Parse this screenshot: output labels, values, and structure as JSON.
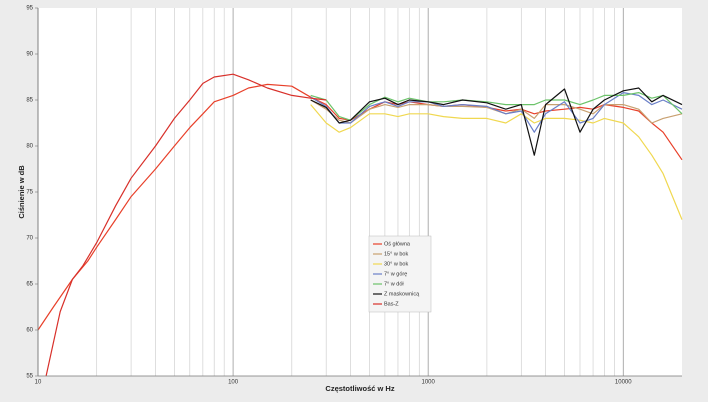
{
  "chart_data": {
    "type": "line",
    "x_label": "Częstotliwość w Hz",
    "y_label": "Ciśnienie w dB",
    "xscale": "log",
    "xlim": [
      10,
      20000
    ],
    "xticks": [
      10,
      100,
      1000,
      10000
    ],
    "x_minor_grid": [
      20,
      30,
      40,
      50,
      60,
      70,
      80,
      90,
      200,
      300,
      400,
      500,
      600,
      700,
      800,
      900,
      2000,
      3000,
      4000,
      5000,
      6000,
      7000,
      8000,
      9000
    ],
    "ylim": [
      55,
      95
    ],
    "yticks": [
      55,
      60,
      65,
      70,
      75,
      80,
      85,
      90,
      95
    ],
    "series": [
      {
        "name": "Oś główna",
        "color": "#e8402a",
        "x": [
          10,
          12,
          15,
          18,
          20,
          25,
          30,
          40,
          50,
          60,
          70,
          80,
          100,
          120,
          150,
          200,
          250,
          300,
          350,
          400,
          500,
          600,
          700,
          800,
          1000,
          1200,
          1500,
          2000,
          2500,
          3000,
          3500,
          4000,
          5000,
          6000,
          7000,
          8000,
          10000,
          12000,
          14000,
          16000,
          20000
        ],
        "values": [
          60,
          62.5,
          65.5,
          67.5,
          69,
          72,
          74.5,
          77.5,
          80,
          82,
          83.5,
          84.8,
          85.5,
          86.3,
          86.7,
          86.5,
          85.3,
          84.5,
          83,
          82.8,
          84,
          84.8,
          84.5,
          84.8,
          84.5,
          84.3,
          84.5,
          84.2,
          83.8,
          84,
          83.5,
          83.8,
          84,
          84.2,
          84,
          84.5,
          84.2,
          83.8,
          82.5,
          81.5,
          78.5
        ]
      },
      {
        "name": "15° w bok",
        "color": "#c8a070",
        "x": [
          250,
          300,
          350,
          400,
          500,
          600,
          700,
          800,
          1000,
          1200,
          1500,
          2000,
          2500,
          3000,
          3500,
          4000,
          5000,
          6000,
          7000,
          8000,
          10000,
          12000,
          14000,
          16000,
          20000
        ],
        "values": [
          85,
          84,
          82.8,
          82.5,
          84,
          84.5,
          84.2,
          84.5,
          84.5,
          84.3,
          84.3,
          84.2,
          83.5,
          84,
          83,
          84.5,
          84.5,
          84,
          83.5,
          84.5,
          84.5,
          84,
          82.5,
          83,
          83.5
        ]
      },
      {
        "name": "30° w bok",
        "color": "#f0d850",
        "x": [
          250,
          300,
          350,
          400,
          500,
          600,
          700,
          800,
          1000,
          1200,
          1500,
          2000,
          2500,
          3000,
          3500,
          4000,
          5000,
          6000,
          7000,
          8000,
          10000,
          12000,
          14000,
          16000,
          20000
        ],
        "values": [
          84.5,
          82.5,
          81.5,
          82,
          83.5,
          83.5,
          83.2,
          83.5,
          83.5,
          83.2,
          83,
          83,
          82.5,
          83.5,
          82.5,
          83,
          83,
          82.8,
          82.5,
          83,
          82.5,
          81,
          79,
          77,
          72
        ]
      },
      {
        "name": "7° w górę",
        "color": "#6a7fc8",
        "x": [
          250,
          300,
          350,
          400,
          500,
          600,
          700,
          800,
          1000,
          1200,
          1500,
          2000,
          2500,
          3000,
          3500,
          4000,
          5000,
          6000,
          7000,
          8000,
          10000,
          12000,
          14000,
          16000,
          20000
        ],
        "values": [
          85.3,
          84.3,
          82.5,
          82.5,
          84.3,
          84.8,
          84.3,
          84.8,
          84.8,
          84.3,
          84.5,
          84.3,
          83.5,
          83.8,
          81.5,
          83.5,
          84.8,
          82.5,
          83,
          84.5,
          85.8,
          85.5,
          84.5,
          85,
          84
        ]
      },
      {
        "name": "7° w dół",
        "color": "#6cc36a",
        "x": [
          250,
          300,
          350,
          400,
          500,
          600,
          700,
          800,
          1000,
          1200,
          1500,
          2000,
          2500,
          3000,
          3500,
          4000,
          5000,
          6000,
          7000,
          8000,
          10000,
          12000,
          14000,
          16000,
          20000
        ],
        "values": [
          85.5,
          85,
          83.2,
          82.8,
          84.5,
          85.3,
          84.8,
          85.2,
          84.8,
          84.8,
          85,
          84.8,
          84.5,
          84.5,
          84.5,
          85,
          85,
          84.5,
          85,
          85.5,
          85.5,
          85.8,
          85.2,
          85.5,
          83.5
        ]
      },
      {
        "name": "Z maskownicą",
        "color": "#111111",
        "x": [
          250,
          300,
          350,
          400,
          500,
          600,
          700,
          800,
          1000,
          1200,
          1500,
          2000,
          2500,
          3000,
          3500,
          4000,
          5000,
          6000,
          7000,
          8000,
          10000,
          12000,
          14000,
          16000,
          20000
        ],
        "values": [
          85,
          84.2,
          82.5,
          82.8,
          84.8,
          85.2,
          84.5,
          85,
          84.8,
          84.5,
          85,
          84.7,
          84,
          84.5,
          79,
          84.5,
          86.2,
          81.5,
          84,
          85,
          86,
          86.3,
          84.8,
          85.5,
          84.5
        ]
      },
      {
        "name": "Bas-Z",
        "color": "#d8302a",
        "x": [
          11,
          13,
          15,
          17,
          20,
          25,
          30,
          40,
          50,
          60,
          70,
          80,
          100,
          120,
          150,
          200,
          250,
          300
        ],
        "values": [
          55,
          62,
          65.5,
          67,
          69.5,
          73.5,
          76.5,
          80,
          83,
          85,
          86.8,
          87.5,
          87.8,
          87.2,
          86.3,
          85.5,
          85.2,
          85
        ]
      }
    ]
  }
}
